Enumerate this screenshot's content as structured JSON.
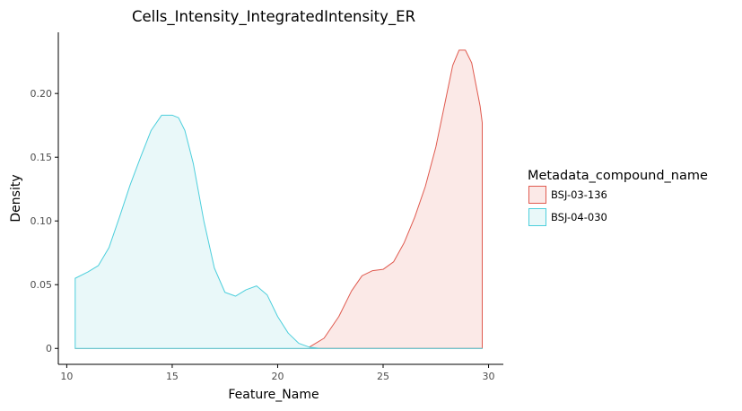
{
  "chart_data": {
    "type": "area",
    "title": "Cells_Intensity_IntegratedIntensity_ER",
    "xlabel": "Feature_Name",
    "ylabel": "Density",
    "xlim": [
      9.6,
      30.7
    ],
    "ylim": [
      -0.0125,
      0.248
    ],
    "x_ticks": [
      10,
      15,
      20,
      25,
      30
    ],
    "x_tick_labels": [
      "10",
      "15",
      "20",
      "25",
      "30"
    ],
    "y_ticks": [
      0,
      0.05,
      0.1,
      0.15,
      0.2
    ],
    "y_tick_labels": [
      "0",
      "0.05",
      "0.10",
      "0.15",
      "0.20"
    ],
    "grid": false,
    "legend": {
      "title": "Metadata_compound_name",
      "position": "right"
    },
    "series": [
      {
        "name": "BSJ-03-136",
        "color": "#e05a4f",
        "fill": "#fbe9e7",
        "x": [
          10.4,
          20.9,
          21.5,
          22.2,
          22.9,
          23.5,
          24.0,
          24.5,
          25.0,
          25.5,
          26.0,
          26.5,
          27.0,
          27.5,
          28.0,
          28.3,
          28.6,
          28.9,
          29.2,
          29.4,
          29.6,
          29.7,
          29.7
        ],
        "values": [
          0,
          0,
          0.001,
          0.008,
          0.025,
          0.045,
          0.057,
          0.061,
          0.062,
          0.068,
          0.083,
          0.103,
          0.127,
          0.158,
          0.198,
          0.222,
          0.234,
          0.234,
          0.224,
          0.207,
          0.19,
          0.177,
          0
        ]
      },
      {
        "name": "BSJ-04-030",
        "color": "#4dcfdc",
        "fill": "#e9f8f9",
        "x": [
          10.4,
          10.4,
          11.0,
          11.5,
          12.0,
          12.5,
          13.0,
          13.5,
          14.0,
          14.5,
          15.0,
          15.3,
          15.6,
          16.0,
          16.5,
          17.0,
          17.5,
          18.0,
          18.5,
          19.0,
          19.5,
          20.0,
          20.5,
          21.0,
          21.5,
          22.0,
          23.0,
          25.0,
          27.0,
          29.7,
          29.7
        ],
        "values": [
          0,
          0.055,
          0.06,
          0.065,
          0.079,
          0.103,
          0.128,
          0.15,
          0.171,
          0.183,
          0.183,
          0.181,
          0.171,
          0.145,
          0.1,
          0.063,
          0.044,
          0.041,
          0.046,
          0.049,
          0.042,
          0.025,
          0.012,
          0.004,
          0.001,
          0,
          0,
          0,
          0,
          0,
          0
        ]
      }
    ]
  }
}
